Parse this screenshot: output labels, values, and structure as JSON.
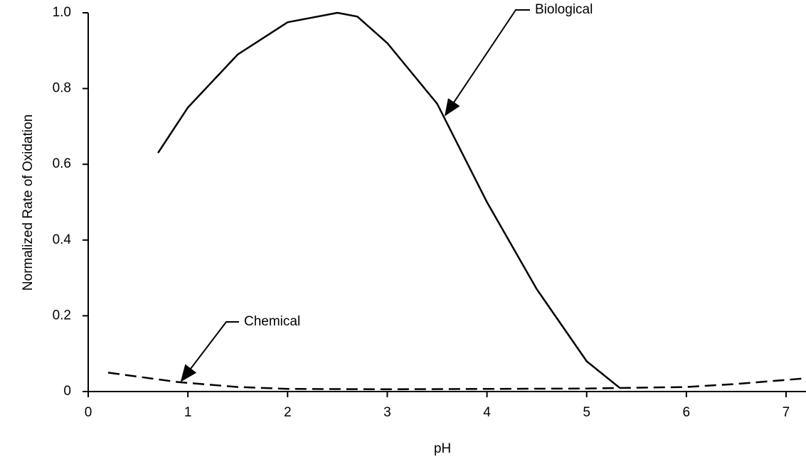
{
  "chart_data": {
    "type": "line",
    "x_label": "pH",
    "y_label": "Normalized Rate of Oxidation",
    "xlim": [
      0,
      7.2
    ],
    "xticks": [
      0,
      1,
      2,
      3,
      4,
      5,
      6,
      7
    ],
    "ylim": [
      0,
      1
    ],
    "yticks": [
      0,
      0.2,
      0.4,
      0.6,
      0.8,
      {
        "value": 1,
        "label": "1.0"
      }
    ],
    "grid": false,
    "series": [
      {
        "name": "Biological",
        "color": "#000000",
        "dash": false,
        "x": [
          0.7,
          1,
          1.5,
          2,
          2.5,
          2.7,
          3,
          3.5,
          4,
          4.5,
          5,
          5.33
        ],
        "values": [
          0.63,
          0.75,
          0.89,
          0.975,
          1.0,
          0.99,
          0.92,
          0.76,
          0.5,
          0.27,
          0.08,
          0.01
        ]
      },
      {
        "name": "Chemical",
        "color": "#000000",
        "dash": true,
        "x": [
          0.2,
          0.9,
          1.5,
          2,
          3,
          4,
          5,
          6,
          6.5,
          7.2
        ],
        "values": [
          0.05,
          0.025,
          0.012,
          0.007,
          0.006,
          0.007,
          0.008,
          0.012,
          0.02,
          0.035
        ]
      }
    ]
  }
}
